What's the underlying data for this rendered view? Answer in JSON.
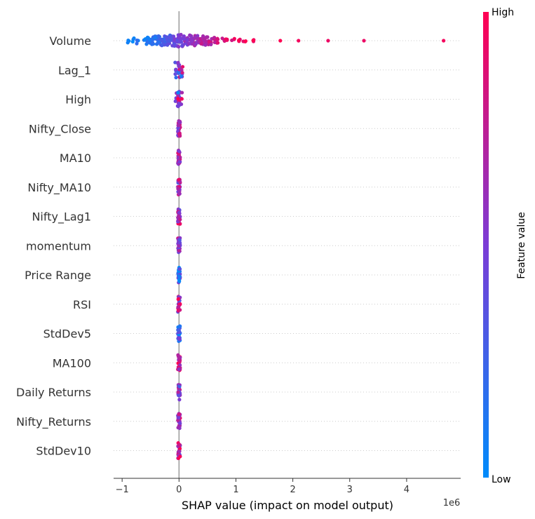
{
  "chart_data": {
    "type": "scatter",
    "subtype": "shap-beeswarm",
    "title": "",
    "xlabel": "SHAP value (impact on model output)",
    "x_offset_text": "1e6",
    "xlim": [
      -1.15,
      4.95
    ],
    "x_ticks": [
      -1,
      0,
      1,
      2,
      3,
      4
    ],
    "x_tick_labels": [
      "−1",
      "0",
      "1",
      "2",
      "3",
      "4"
    ],
    "grid": "dotted horizontal per feature",
    "colorbar": {
      "label": "Feature value",
      "high_label": "High",
      "low_label": "Low",
      "low_color": "#008bfb",
      "high_color": "#ff0052"
    },
    "features": [
      {
        "name": "Volume",
        "points": [
          {
            "x": -0.88,
            "v": 0.05
          },
          {
            "x": -0.8,
            "v": 0.05
          },
          {
            "x": -0.72,
            "v": 0.1
          },
          {
            "x": -0.6,
            "v": 0.1
          },
          {
            "x": -0.55,
            "v": 0.15
          },
          {
            "x": -0.5,
            "v": 0.1
          },
          {
            "x": -0.45,
            "v": 0.15
          },
          {
            "x": -0.4,
            "v": 0.2
          },
          {
            "x": -0.35,
            "v": 0.2
          },
          {
            "x": -0.3,
            "v": 0.25
          },
          {
            "x": -0.25,
            "v": 0.3
          },
          {
            "x": -0.2,
            "v": 0.35
          },
          {
            "x": -0.15,
            "v": 0.35
          },
          {
            "x": -0.1,
            "v": 0.4
          },
          {
            "x": -0.05,
            "v": 0.45
          },
          {
            "x": 0.0,
            "v": 0.5
          },
          {
            "x": 0.05,
            "v": 0.5
          },
          {
            "x": 0.1,
            "v": 0.55
          },
          {
            "x": 0.15,
            "v": 0.55
          },
          {
            "x": 0.2,
            "v": 0.6
          },
          {
            "x": 0.25,
            "v": 0.6
          },
          {
            "x": 0.3,
            "v": 0.65
          },
          {
            "x": 0.35,
            "v": 0.65
          },
          {
            "x": 0.4,
            "v": 0.7
          },
          {
            "x": 0.45,
            "v": 0.7
          },
          {
            "x": 0.5,
            "v": 0.75
          },
          {
            "x": 0.55,
            "v": 0.75
          },
          {
            "x": 0.6,
            "v": 0.8
          },
          {
            "x": 0.65,
            "v": 0.8
          },
          {
            "x": 0.7,
            "v": 0.85
          },
          {
            "x": 0.78,
            "v": 0.85
          },
          {
            "x": 0.85,
            "v": 0.9
          },
          {
            "x": 0.95,
            "v": 0.9
          },
          {
            "x": 1.05,
            "v": 0.95
          },
          {
            "x": 1.15,
            "v": 0.95
          },
          {
            "x": 1.3,
            "v": 0.95
          },
          {
            "x": 1.78,
            "v": 1.0
          },
          {
            "x": 2.1,
            "v": 1.0
          },
          {
            "x": 2.62,
            "v": 1.0
          },
          {
            "x": 3.25,
            "v": 1.0
          },
          {
            "x": 4.65,
            "v": 1.0
          }
        ]
      },
      {
        "name": "Lag_1",
        "spread": 0.05,
        "points": [
          {
            "x": -0.03,
            "v": 0.2
          },
          {
            "x": -0.01,
            "v": 0.3
          },
          {
            "x": 0.01,
            "v": 0.5
          },
          {
            "x": 0.02,
            "v": 0.7
          },
          {
            "x": 0.03,
            "v": 0.8
          },
          {
            "x": -0.02,
            "v": 0.4
          }
        ]
      },
      {
        "name": "High",
        "spread": 0.04,
        "points": [
          {
            "x": -0.03,
            "v": 0.3
          },
          {
            "x": -0.01,
            "v": 0.4
          },
          {
            "x": 0.01,
            "v": 0.6
          },
          {
            "x": 0.02,
            "v": 0.8
          }
        ]
      },
      {
        "name": "Nifty_Close",
        "spread": 0.02,
        "points": [
          {
            "x": 0.0,
            "v": 0.6
          },
          {
            "x": 0.0,
            "v": 0.8
          }
        ]
      },
      {
        "name": "MA10",
        "spread": 0.02,
        "points": [
          {
            "x": 0.0,
            "v": 0.5
          },
          {
            "x": 0.0,
            "v": 0.7
          }
        ]
      },
      {
        "name": "Nifty_MA10",
        "spread": 0.02,
        "points": [
          {
            "x": 0.0,
            "v": 0.5
          },
          {
            "x": 0.0,
            "v": 0.75
          }
        ]
      },
      {
        "name": "Nifty_Lag1",
        "spread": 0.02,
        "points": [
          {
            "x": 0.0,
            "v": 0.6
          },
          {
            "x": 0.0,
            "v": 0.8
          }
        ]
      },
      {
        "name": "momentum",
        "spread": 0.02,
        "points": [
          {
            "x": 0.0,
            "v": 0.6
          },
          {
            "x": 0.0,
            "v": 0.5
          }
        ]
      },
      {
        "name": "Price Range",
        "spread": 0.02,
        "points": [
          {
            "x": 0.0,
            "v": 0.2
          },
          {
            "x": 0.0,
            "v": 0.3
          }
        ]
      },
      {
        "name": "RSI",
        "spread": 0.02,
        "points": [
          {
            "x": 0.0,
            "v": 0.8
          },
          {
            "x": 0.0,
            "v": 0.6
          }
        ]
      },
      {
        "name": "StdDev5",
        "spread": 0.02,
        "points": [
          {
            "x": 0.0,
            "v": 0.2
          },
          {
            "x": 0.0,
            "v": 0.3
          }
        ]
      },
      {
        "name": "MA100",
        "spread": 0.02,
        "points": [
          {
            "x": 0.0,
            "v": 0.9
          },
          {
            "x": 0.0,
            "v": 0.8
          }
        ]
      },
      {
        "name": "Daily Returns",
        "spread": 0.02,
        "points": [
          {
            "x": 0.0,
            "v": 0.6
          },
          {
            "x": 0.0,
            "v": 0.5
          }
        ]
      },
      {
        "name": "Nifty_Returns",
        "spread": 0.02,
        "points": [
          {
            "x": 0.0,
            "v": 0.7
          },
          {
            "x": 0.0,
            "v": 0.6
          }
        ]
      },
      {
        "name": "StdDev10",
        "spread": 0.02,
        "points": [
          {
            "x": 0.0,
            "v": 0.5
          },
          {
            "x": 0.0,
            "v": 0.9
          }
        ]
      }
    ]
  }
}
